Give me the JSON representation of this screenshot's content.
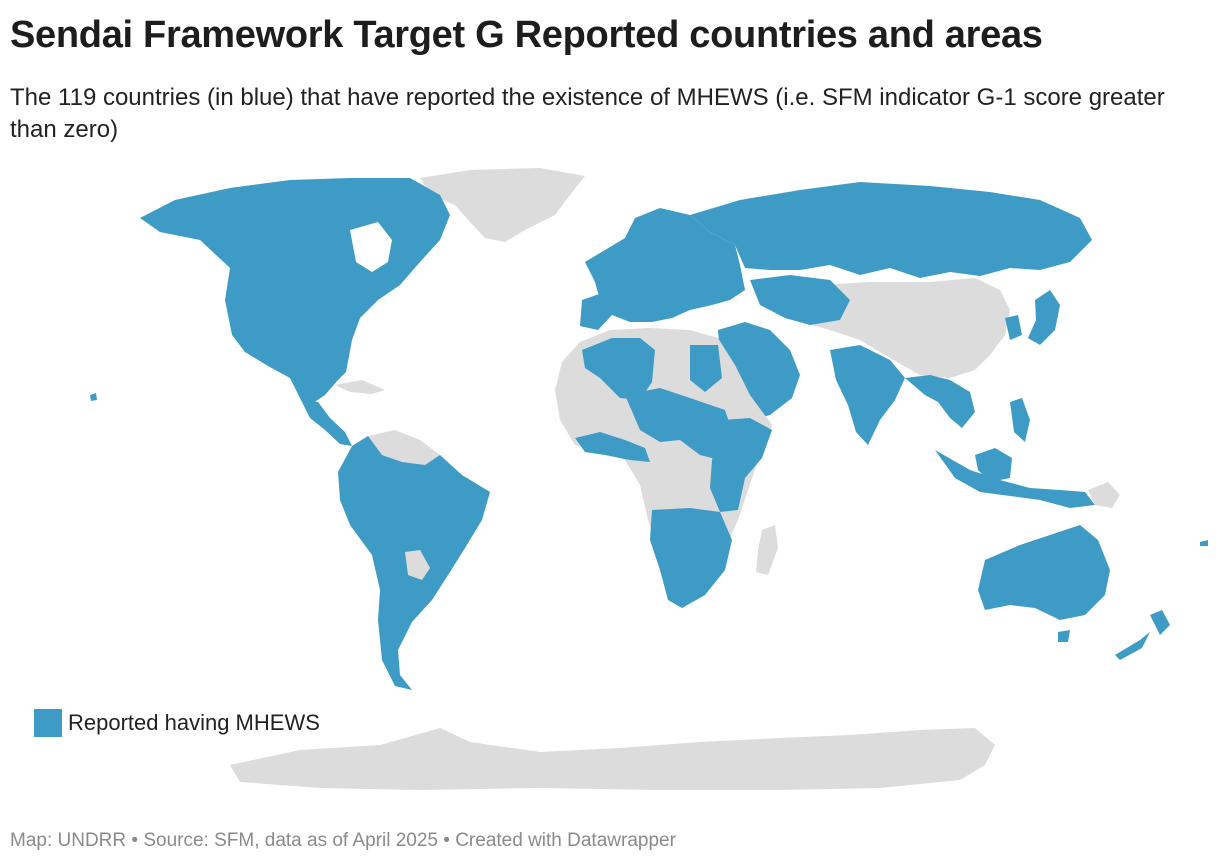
{
  "title": "Sendai Framework Target G Reported countries and areas",
  "subtitle": "The 119 countries (in blue) that have reported the existence of MHEWS (i.e. SFM indicator G-1 score greater than zero)",
  "legend": {
    "label": "Reported having MHEWS",
    "color": "#3e9bc6"
  },
  "colors": {
    "reported": "#3e9bc6",
    "not_reported": "#dcdcdc",
    "background": "#ffffff"
  },
  "footer": "Map: UNDRR • Source: SFM, data as of April 2025 • Created with Datawrapper"
}
